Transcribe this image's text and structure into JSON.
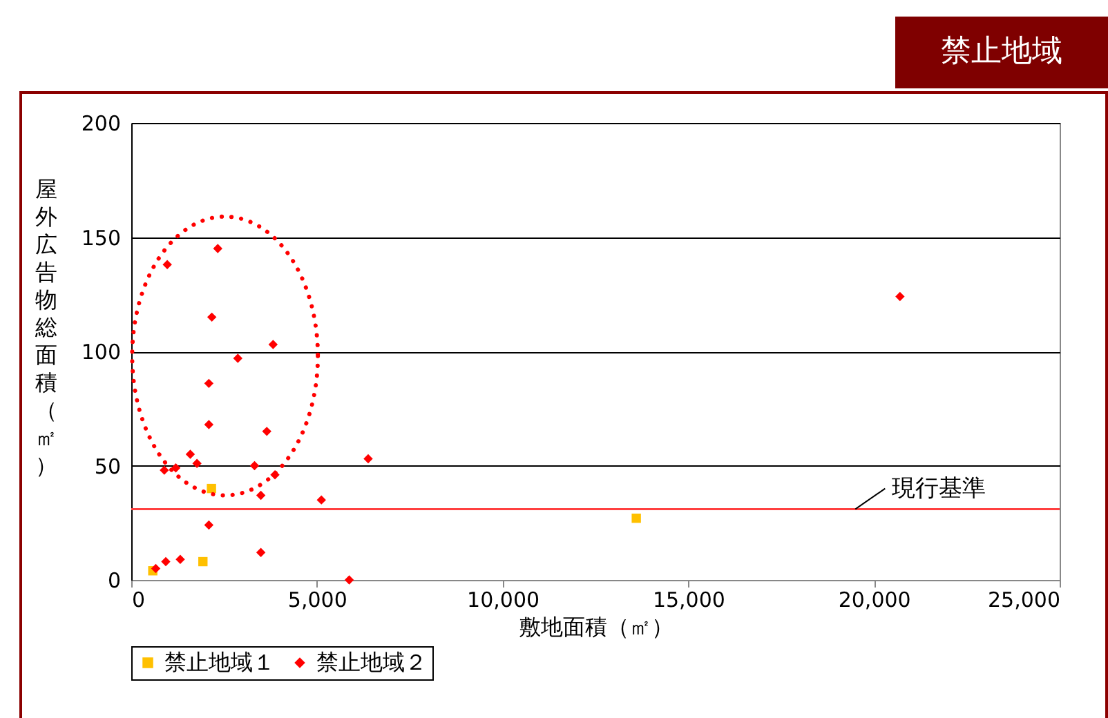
{
  "chart_data": {
    "type": "scatter",
    "title": "禁止地域",
    "xlabel": "敷地面積（㎡）",
    "ylabel": "屋外広告物総面積（㎡）",
    "xlim": [
      0,
      25000
    ],
    "xticks": [
      0,
      {
        "value": 5000,
        "label": "5,000"
      },
      {
        "value": 10000,
        "label": "10,000"
      },
      {
        "value": 15000,
        "label": "15,000"
      },
      {
        "value": 20000,
        "label": "20,000"
      },
      {
        "value": 25000,
        "label": "25,000"
      }
    ],
    "ylim": [
      0,
      200
    ],
    "yticks": [
      0,
      50,
      100,
      150,
      200
    ],
    "grid": "y",
    "legend": "bottom",
    "series": [
      {
        "name": "禁止地域１",
        "color": "#ffc000",
        "marker": "square",
        "x": [
          580,
          1930,
          2160,
          13600
        ],
        "values": [
          4,
          8,
          40,
          27
        ]
      },
      {
        "name": "禁止地域２",
        "color": "#ff0000",
        "marker": "diamond",
        "x": [
          2330,
          970,
          2170,
          3820,
          2870,
          2090,
          2090,
          3650,
          1590,
          1770,
          3320,
          890,
          1200,
          3870,
          3490,
          5120,
          2090,
          3490,
          1320,
          930,
          660,
          5870,
          6380,
          20700
        ],
        "values": [
          145,
          138,
          115,
          103,
          97,
          86,
          68,
          65,
          55,
          51,
          50,
          48,
          49,
          46,
          37,
          35,
          24,
          12,
          9,
          8,
          5,
          0,
          53,
          124
        ]
      }
    ],
    "ref_lines": [
      {
        "axis": "y",
        "value": 31,
        "label": "現行基準",
        "color": "#ff4040"
      }
    ]
  }
}
